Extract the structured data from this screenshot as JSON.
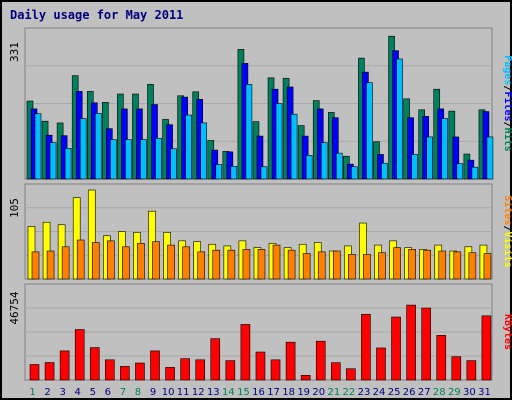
{
  "chart_data": {
    "type": "bar",
    "title": "Daily usage for May 2011",
    "days": [
      1,
      2,
      3,
      4,
      5,
      6,
      7,
      8,
      9,
      10,
      11,
      12,
      13,
      14,
      15,
      16,
      17,
      18,
      19,
      20,
      21,
      22,
      23,
      24,
      25,
      26,
      27,
      28,
      29,
      30,
      31
    ],
    "weekend_days": [
      1,
      7,
      8,
      14,
      15,
      21,
      22,
      28,
      29
    ],
    "panels": [
      {
        "id": "hits",
        "max_label": "331",
        "ylim": [
          0,
          331
        ],
        "series": [
          {
            "name": "Hits",
            "color": "#00805c",
            "values": [
              178,
              132,
              128,
              236,
              200,
              175,
              194,
              194,
              216,
              136,
              190,
              199,
              88,
              63,
              296,
              131,
              231,
              230,
              122,
              179,
              152,
              52,
              276,
              85,
              326,
              183,
              158,
              205,
              155,
              57,
              158
            ]
          },
          {
            "name": "Files",
            "color": "#0000ff",
            "values": [
              160,
              100,
              99,
              200,
              174,
              115,
              160,
              160,
              170,
              124,
              187,
              182,
              66,
              62,
              264,
              98,
              205,
              210,
              98,
              160,
              140,
              34,
              244,
              56,
              293,
              140,
              143,
              160,
              96,
              43,
              154
            ]
          },
          {
            "name": "Pages",
            "color": "#00bfff",
            "values": [
              149,
              83,
              70,
              138,
              150,
              90,
              90,
              90,
              93,
              69,
              146,
              128,
              33,
              29,
              216,
              28,
              172,
              148,
              54,
              83,
              59,
              28,
              220,
              36,
              274,
              56,
              96,
              138,
              35,
              27,
              96
            ]
          }
        ]
      },
      {
        "id": "visits",
        "max_label": "105",
        "ylim": [
          0,
          105
        ],
        "series": [
          {
            "name": "Visits",
            "color": "#ffff00",
            "values": [
              62,
              67,
              64,
              96,
              105,
              51,
              56,
              55,
              80,
              55,
              45,
              44,
              41,
              39,
              45,
              37,
              42,
              37,
              41,
              43,
              33,
              39,
              66,
              40,
              45,
              37,
              35,
              40,
              33,
              38,
              40
            ]
          },
          {
            "name": "Sites",
            "color": "#ff8000",
            "values": [
              32,
              33,
              38,
              46,
              43,
              45,
              38,
              42,
              44,
              40,
              38,
              32,
              34,
              34,
              35,
              35,
              40,
              34,
              30,
              32,
              33,
              29,
              29,
              31,
              37,
              35,
              34,
              33,
              32,
              31,
              30
            ]
          }
        ]
      },
      {
        "id": "kbytes",
        "max_label": "46754",
        "ylim": [
          0,
          46754
        ],
        "series": [
          {
            "name": "KBytes",
            "color": "#ff0000",
            "values": [
              8050,
              9070,
              15120,
              26220,
              16840,
              10480,
              7060,
              8820,
              15120,
              6550,
              11090,
              10480,
              21460,
              10080,
              28860,
              14530,
              10480,
              19650,
              2420,
              20160,
              8990,
              5850,
              34140,
              16640,
              32720,
              38910,
              37390,
              23180,
              12090,
              10080,
              33330
            ]
          }
        ]
      }
    ],
    "right_labels": {
      "hits_panel": [
        {
          "text": "Pages",
          "color": "#00bfff"
        },
        {
          "text": "/",
          "color": "#000000"
        },
        {
          "text": "Files",
          "color": "#0000ff"
        },
        {
          "text": "/",
          "color": "#000000"
        },
        {
          "text": "Hits",
          "color": "#00805c"
        }
      ],
      "visits_panel": [
        {
          "text": "Sites",
          "color": "#ff8000"
        },
        {
          "text": "/",
          "color": "#000000"
        },
        {
          "text": "Visits",
          "color": "#ffff00"
        }
      ],
      "kbytes_panel": [
        {
          "text": "KBytes",
          "color": "#ff0000"
        }
      ]
    },
    "colors": {
      "weekday_label": "#00007f",
      "weekend_label": "#00805c",
      "title": "#00007f",
      "background": "#c0c0c0"
    }
  }
}
